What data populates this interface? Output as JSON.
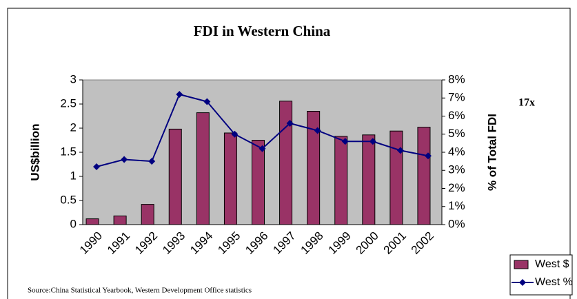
{
  "chart_data": {
    "type": "bar_line",
    "title": "FDI in Western China",
    "y_label": "US$billion",
    "y2_label": "% of Total FDI",
    "annotation": "17x",
    "source": "Source:China Statistical Yearbook, Western Development Office statistics",
    "categories": [
      "1990",
      "1991",
      "1992",
      "1993",
      "1994",
      "1995",
      "1996",
      "1997",
      "1998",
      "1999",
      "2000",
      "2001",
      "2002"
    ],
    "series": [
      {
        "name": "West $",
        "type": "bar",
        "color": "#993366",
        "values": [
          0.12,
          0.18,
          0.42,
          1.98,
          2.32,
          1.9,
          1.75,
          2.56,
          2.35,
          1.83,
          1.86,
          1.94,
          2.02
        ]
      },
      {
        "name": "West %",
        "type": "line",
        "axis": "y2",
        "color": "#000080",
        "values": [
          3.2,
          3.6,
          3.5,
          7.2,
          6.8,
          5.0,
          4.2,
          5.6,
          5.2,
          4.6,
          4.6,
          4.1,
          3.8
        ]
      }
    ],
    "ylim": [
      0,
      3
    ],
    "yticks": [
      0,
      0.5,
      1,
      1.5,
      2,
      2.5,
      3
    ],
    "y2lim": [
      0,
      8
    ],
    "y2ticks": [
      {
        "value": 0,
        "label": "0%"
      },
      {
        "value": 1,
        "label": "1%"
      },
      {
        "value": 2,
        "label": "2%"
      },
      {
        "value": 3,
        "label": "3%"
      },
      {
        "value": 4,
        "label": "4%"
      },
      {
        "value": 5,
        "label": "5%"
      },
      {
        "value": 6,
        "label": "6%"
      },
      {
        "value": 7,
        "label": "7%"
      },
      {
        "value": 8,
        "label": "8%"
      }
    ],
    "plot_background": "#c0c0c0",
    "legend": "bottom-right"
  }
}
